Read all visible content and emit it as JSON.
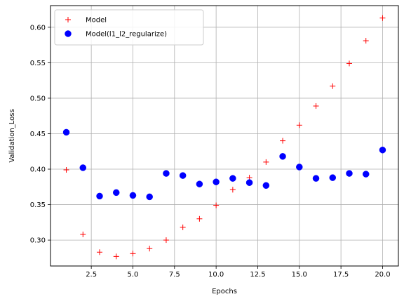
{
  "chart_data": {
    "type": "scatter",
    "title": "",
    "xlabel": "Epochs",
    "ylabel": "Validation_Loss",
    "xlim": [
      0.05,
      20.95
    ],
    "ylim": [
      0.2635,
      0.6305
    ],
    "xticks": [
      2.5,
      5.0,
      7.5,
      10.0,
      12.5,
      15.0,
      17.5,
      20.0
    ],
    "xtick_labels": [
      "2.5",
      "5.0",
      "7.5",
      "10.0",
      "12.5",
      "15.0",
      "17.5",
      "20.0"
    ],
    "yticks": [
      0.3,
      0.35,
      0.4,
      0.45,
      0.5,
      0.55,
      0.6
    ],
    "ytick_labels": [
      "0.30",
      "0.35",
      "0.40",
      "0.45",
      "0.50",
      "0.55",
      "0.60"
    ],
    "grid": true,
    "legend_position": "top-left",
    "x": [
      1,
      2,
      3,
      4,
      5,
      6,
      7,
      8,
      9,
      10,
      11,
      12,
      13,
      14,
      15,
      16,
      17,
      18,
      19,
      20
    ],
    "series": [
      {
        "name": "Model",
        "marker": "plus",
        "color": "#ff0000",
        "values": [
          0.399,
          0.308,
          0.283,
          0.277,
          0.281,
          0.288,
          0.3,
          0.318,
          0.33,
          0.349,
          0.371,
          0.388,
          0.41,
          0.44,
          0.462,
          0.489,
          0.517,
          0.549,
          0.581,
          0.613
        ]
      },
      {
        "name": "Model(l1_l2_regularize)",
        "marker": "circle",
        "color": "#0000ff",
        "values": [
          0.452,
          0.402,
          0.362,
          0.367,
          0.363,
          0.361,
          0.394,
          0.391,
          0.379,
          0.382,
          0.387,
          0.381,
          0.377,
          0.418,
          0.403,
          0.387,
          0.388,
          0.394,
          0.393,
          0.427
        ]
      }
    ]
  }
}
